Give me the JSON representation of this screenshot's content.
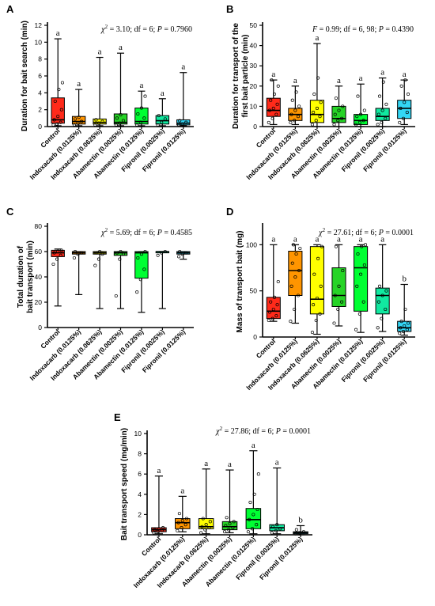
{
  "colors": [
    "#ff2a1a",
    "#ff9500",
    "#ffff00",
    "#26d426",
    "#00ff33",
    "#11e8a0",
    "#33d6f5"
  ],
  "chart_data": [
    {
      "type": "box",
      "panel": "A",
      "ylabel": "Duration for bait search (min)",
      "ylim": [
        0,
        12
      ],
      "yticks": [
        0,
        2,
        4,
        6,
        8,
        10,
        12
      ],
      "categories": [
        "Control",
        "Indoxacarb (0.0125%)",
        "Indoxacarb (0.0625%)",
        "Abamectin (0.0025%)",
        "Abamectin (0.0125%)",
        "Fipronil (0.0025%)",
        "Fipronil (0.0125%)"
      ],
      "stat_prefix": "χ",
      "stat_sup": "2",
      "stat_text": " = 3.10; df = 6; ",
      "p_label": "P",
      "p_text": " = 0.7960",
      "groups": [
        {
          "min": 0.1,
          "q1": 0.4,
          "median": 0.8,
          "q3": 3.4,
          "max": 10.4,
          "points": [
            0.2,
            0.3,
            0.5,
            0.8,
            1.2,
            2.0,
            3.0,
            4.4,
            5.2
          ]
        },
        {
          "min": 0.1,
          "q1": 0.3,
          "median": 0.6,
          "q3": 1.2,
          "max": 4.4,
          "points": [
            0.2,
            0.4,
            0.6,
            0.9,
            1.1
          ]
        },
        {
          "min": 0.1,
          "q1": 0.3,
          "median": 0.5,
          "q3": 0.9,
          "max": 8.2,
          "points": [
            0.2,
            0.4,
            0.6,
            0.8
          ]
        },
        {
          "min": 0.1,
          "q1": 0.3,
          "median": 0.5,
          "q3": 1.5,
          "max": 8.7,
          "points": [
            0.2,
            0.4,
            0.7,
            1.0,
            1.4
          ]
        },
        {
          "min": 0.1,
          "q1": 0.3,
          "median": 0.6,
          "q3": 2.2,
          "max": 4.2,
          "points": [
            0.2,
            0.5,
            1.0,
            1.5,
            2.2,
            3.6
          ]
        },
        {
          "min": 0.1,
          "q1": 0.3,
          "median": 0.7,
          "q3": 1.3,
          "max": 3.3,
          "points": [
            0.2,
            0.5,
            0.9,
            1.3
          ]
        },
        {
          "min": 0.1,
          "q1": 0.2,
          "median": 0.4,
          "q3": 0.8,
          "max": 6.4,
          "points": [
            0.2,
            0.3,
            0.5,
            0.7
          ]
        }
      ],
      "letters": [
        "a",
        "a",
        "a",
        "a",
        "a",
        "a",
        "a"
      ]
    },
    {
      "type": "box",
      "panel": "B",
      "ylabel": "Duration for transport of the first bait particle (min)",
      "ylim": [
        0,
        50
      ],
      "yticks": [
        0,
        10,
        20,
        30,
        40,
        50
      ],
      "categories": [
        "Control",
        "Indoxacarb (0.0125%)",
        "Indoxacarb (0.0625%)",
        "Abamectin (0.0025%)",
        "Abamectin (0.0125%)",
        "Fipronil (0.0025%)",
        "Fipronil (0.0125%)"
      ],
      "stat_prefix": "F",
      "stat_sup": "",
      "stat_text": " = 0.99; df = 6, 98; ",
      "p_label": "P",
      "p_text": " = 0.4390",
      "groups": [
        {
          "min": 1,
          "q1": 5,
          "median": 8,
          "q3": 14,
          "max": 23,
          "points": [
            2,
            4,
            6,
            8,
            9,
            11,
            13,
            16,
            20,
            23
          ]
        },
        {
          "min": 1,
          "q1": 3,
          "median": 6,
          "q3": 9,
          "max": 20,
          "points": [
            2,
            3,
            5,
            6,
            8,
            10,
            13,
            17
          ]
        },
        {
          "min": 0,
          "q1": 2,
          "median": 6,
          "q3": 13,
          "max": 41,
          "points": [
            1,
            3,
            5,
            7,
            9,
            12,
            16,
            24
          ]
        },
        {
          "min": 0,
          "q1": 2,
          "median": 4,
          "q3": 10,
          "max": 20,
          "points": [
            1,
            3,
            4,
            6,
            8,
            10,
            14
          ]
        },
        {
          "min": 0,
          "q1": 1,
          "median": 3,
          "q3": 6,
          "max": 21,
          "points": [
            1,
            2,
            3,
            5,
            6,
            8,
            15
          ]
        },
        {
          "min": 0,
          "q1": 3,
          "median": 5,
          "q3": 9,
          "max": 24,
          "points": [
            1,
            2,
            4,
            6,
            8,
            11,
            15,
            22
          ]
        },
        {
          "min": 1,
          "q1": 4,
          "median": 9,
          "q3": 13,
          "max": 23,
          "points": [
            2,
            4,
            7,
            9,
            12,
            16,
            20,
            23
          ]
        }
      ],
      "letters": [
        "a",
        "a",
        "a",
        "a",
        "a",
        "a",
        "a"
      ]
    },
    {
      "type": "box",
      "panel": "C",
      "ylabel": "Total duration of bait transport (min)",
      "ylim": [
        0,
        80
      ],
      "yticks": [
        0,
        20,
        40,
        60,
        80
      ],
      "categories": [
        "Control",
        "Indoxacarb (0.0125%)",
        "Indoxacarb (0.0625%)",
        "Abamectin (0.0025%)",
        "Abamectin (0.0125%)",
        "Fipronil (0.0025%)",
        "Fipronil (0.0125%)"
      ],
      "stat_prefix": "χ",
      "stat_sup": "2",
      "stat_text": " = 5.69; df = 6; ",
      "p_label": "P",
      "p_text": " = 0.4585",
      "groups": [
        {
          "min": 17,
          "q1": 56,
          "median": 59,
          "q3": 61,
          "max": 62,
          "points": [
            50,
            54,
            57,
            59,
            60,
            61
          ]
        },
        {
          "min": 26,
          "q1": 58,
          "median": 59,
          "q3": 60,
          "max": 60,
          "points": [
            55,
            58,
            59,
            60
          ]
        },
        {
          "min": 15,
          "q1": 58,
          "median": 59,
          "q3": 60,
          "max": 60,
          "points": [
            49,
            54,
            58,
            59,
            60
          ]
        },
        {
          "min": 15,
          "q1": 57,
          "median": 59,
          "q3": 60,
          "max": 60,
          "points": [
            25,
            54,
            58,
            59,
            60
          ]
        },
        {
          "min": 12,
          "q1": 39,
          "median": 59,
          "q3": 60,
          "max": 60,
          "points": [
            28,
            38,
            46,
            55,
            58,
            60
          ]
        },
        {
          "min": 15,
          "q1": 59,
          "median": 60,
          "q3": 60,
          "max": 60,
          "points": [
            57,
            59,
            60
          ]
        },
        {
          "min": 54,
          "q1": 58,
          "median": 59,
          "q3": 60,
          "max": 60,
          "points": [
            56,
            58,
            59,
            60
          ]
        }
      ],
      "letters": []
    },
    {
      "type": "box",
      "panel": "D",
      "ylabel": "Mass of transport bait (mg)",
      "ylim": [
        0,
        120
      ],
      "yticks": [
        0,
        50,
        100
      ],
      "categories": [
        "Control",
        "Indoxacarb (0.0125%)",
        "Indoxacarb (0.0625%)",
        "Abamectin (0.0025%)",
        "Abamectin (0.0125%)",
        "Fipronil (0.0025%)",
        "Fipronil (0.0125%)"
      ],
      "stat_prefix": "χ",
      "stat_sup": "2",
      "stat_text": " = 27.61; df = 6; ",
      "p_label": "P",
      "p_text": " = 0.0001",
      "groups": [
        {
          "min": 17,
          "q1": 20,
          "median": 28,
          "q3": 43,
          "max": 100,
          "points": [
            18,
            20,
            23,
            27,
            30,
            35,
            38,
            43,
            60
          ]
        },
        {
          "min": 15,
          "q1": 45,
          "median": 72,
          "q3": 93,
          "max": 100,
          "points": [
            17,
            30,
            45,
            55,
            65,
            72,
            80,
            90,
            96,
            100
          ]
        },
        {
          "min": 3,
          "q1": 25,
          "median": 41,
          "q3": 98,
          "max": 100,
          "points": [
            5,
            18,
            25,
            35,
            42,
            55,
            68,
            85,
            98
          ]
        },
        {
          "min": 12,
          "q1": 33,
          "median": 45,
          "q3": 75,
          "max": 100,
          "points": [
            15,
            30,
            38,
            45,
            55,
            72,
            98
          ]
        },
        {
          "min": 5,
          "q1": 28,
          "median": 75,
          "q3": 98,
          "max": 100,
          "points": [
            8,
            25,
            38,
            55,
            68,
            78,
            90,
            98,
            100
          ]
        },
        {
          "min": 6,
          "q1": 25,
          "median": 45,
          "q3": 53,
          "max": 100,
          "points": [
            10,
            20,
            30,
            38,
            45,
            50,
            55
          ]
        },
        {
          "min": 2,
          "q1": 6,
          "median": 10,
          "q3": 17,
          "max": 57,
          "points": [
            4,
            6,
            8,
            10,
            12,
            15,
            17,
            30
          ]
        }
      ],
      "letters": [
        "a",
        "a",
        "a",
        "a",
        "a",
        "a",
        "b"
      ]
    },
    {
      "type": "box",
      "panel": "E",
      "ylabel": "Bait transport speed (mg/min)",
      "ylim": [
        0,
        10
      ],
      "yticks": [
        0,
        2,
        4,
        6,
        8,
        10
      ],
      "categories": [
        "Control",
        "Indoxacarb (0.0125%)",
        "Indoxacarb (0.0625%)",
        "Abamectin (0.0025%)",
        "Abamectin (0.0125%)",
        "Fipronil (0.0025%)",
        "Fipronil (0.0125%)"
      ],
      "stat_prefix": "χ",
      "stat_sup": "2",
      "stat_text": " = 27.86; df = 6; ",
      "p_label": "P",
      "p_text": " = 0.0001",
      "groups": [
        {
          "min": 0.1,
          "q1": 0.3,
          "median": 0.5,
          "q3": 0.7,
          "max": 5.8,
          "points": [
            0.2,
            0.3,
            0.4,
            0.5,
            0.6,
            0.7
          ]
        },
        {
          "min": 0.3,
          "q1": 0.6,
          "median": 1.2,
          "q3": 1.6,
          "max": 3.8,
          "points": [
            0.4,
            0.7,
            1.0,
            1.2,
            1.4,
            1.6,
            2.1
          ]
        },
        {
          "min": 0.1,
          "q1": 0.6,
          "median": 0.8,
          "q3": 1.6,
          "max": 6.5,
          "points": [
            0.2,
            0.5,
            0.7,
            0.8,
            1.0,
            1.3,
            1.6
          ]
        },
        {
          "min": 0.2,
          "q1": 0.5,
          "median": 0.8,
          "q3": 1.3,
          "max": 6.4,
          "points": [
            0.3,
            0.5,
            0.7,
            0.9,
            1.1,
            1.3,
            1.7
          ]
        },
        {
          "min": 0.1,
          "q1": 0.6,
          "median": 1.5,
          "q3": 2.6,
          "max": 8.3,
          "points": [
            0.3,
            0.6,
            1.0,
            1.5,
            2.0,
            2.5,
            3.2,
            4.0,
            6.0
          ]
        },
        {
          "min": 0.1,
          "q1": 0.4,
          "median": 0.7,
          "q3": 1.0,
          "max": 6.6,
          "points": [
            0.2,
            0.4,
            0.6,
            0.8,
            1.0
          ]
        },
        {
          "min": 0.0,
          "q1": 0.1,
          "median": 0.2,
          "q3": 0.3,
          "max": 0.9,
          "points": [
            0.1,
            0.2,
            0.3,
            0.5
          ]
        }
      ],
      "letters": [
        "a",
        "a",
        "a",
        "a",
        "a",
        "a",
        "b"
      ]
    }
  ]
}
